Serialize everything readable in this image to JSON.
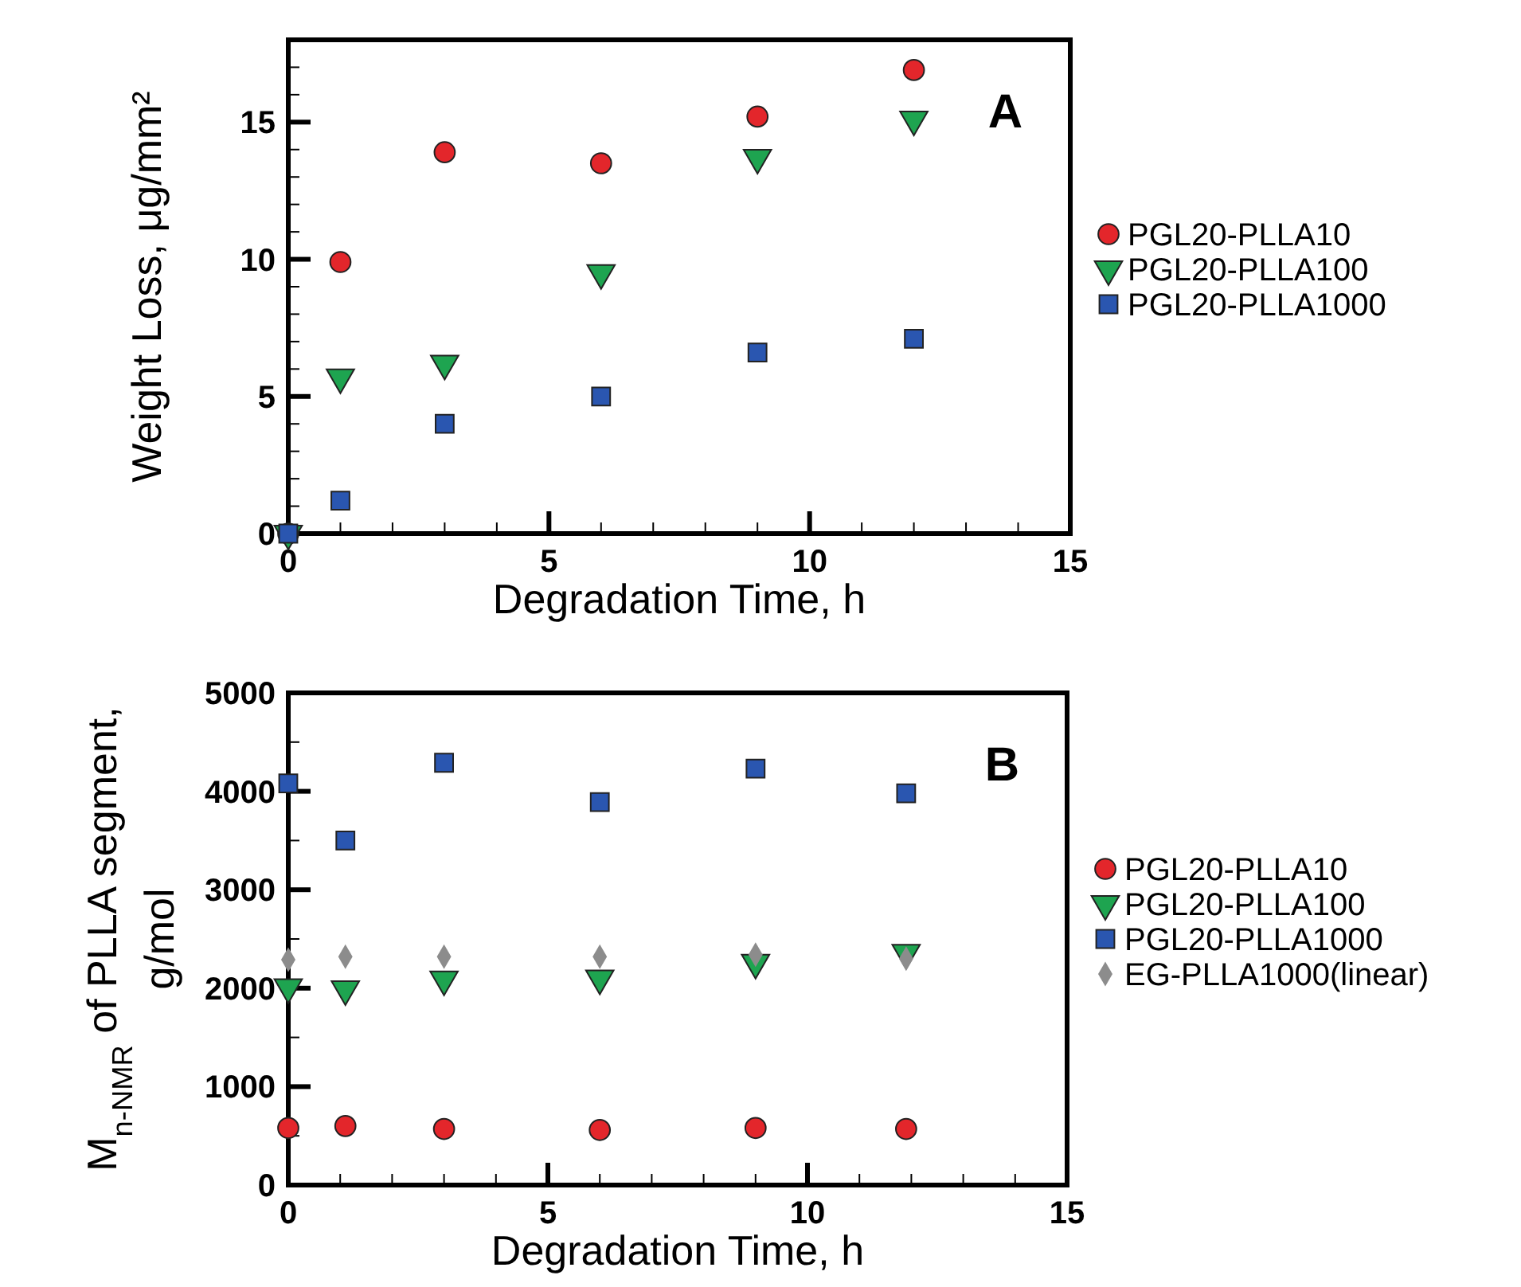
{
  "chart_data": [
    {
      "type": "scatter",
      "xlabel": "Degradation Time, h",
      "ylabel": "Weight Loss, μg/mm²",
      "annotations": [
        "A"
      ],
      "xlim": [
        0,
        15
      ],
      "ylim": [
        0,
        18
      ],
      "xticks": [
        0,
        {
          "value": 1,
          "label": null
        },
        {
          "value": 2,
          "label": null
        },
        {
          "value": 3,
          "label": null
        },
        {
          "value": 4,
          "label": null
        },
        5,
        {
          "value": 6,
          "label": null
        },
        {
          "value": 7,
          "label": null
        },
        {
          "value": 8,
          "label": null
        },
        {
          "value": 9,
          "label": null
        },
        10,
        {
          "value": 11,
          "label": null
        },
        {
          "value": 12,
          "label": null
        },
        {
          "value": 13,
          "label": null
        },
        {
          "value": 14,
          "label": null
        },
        15
      ],
      "yticks": [
        0,
        {
          "value": 1,
          "label": null
        },
        {
          "value": 2,
          "label": null
        },
        {
          "value": 3,
          "label": null
        },
        {
          "value": 4,
          "label": null
        },
        5,
        {
          "value": 6,
          "label": null
        },
        {
          "value": 7,
          "label": null
        },
        {
          "value": 8,
          "label": null
        },
        {
          "value": 9,
          "label": null
        },
        10,
        {
          "value": 11,
          "label": null
        },
        {
          "value": 12,
          "label": null
        },
        {
          "value": 13,
          "label": null
        },
        {
          "value": 14,
          "label": null
        },
        15,
        {
          "value": 16,
          "label": null
        },
        {
          "value": 17,
          "label": null
        },
        {
          "value": 18,
          "label": null
        }
      ],
      "legend": "right",
      "grid": false,
      "series": [
        {
          "name": "PGL20-PLLA10",
          "color": "#e3262b",
          "marker": "circle",
          "x": [
            0,
            1,
            3,
            6,
            9,
            12
          ],
          "values": [
            0,
            9.9,
            13.9,
            13.5,
            15.2,
            16.9
          ]
        },
        {
          "name": "PGL20-PLLA100",
          "color": "#1ea450",
          "marker": "triangle",
          "x": [
            0,
            1,
            3,
            6,
            9,
            12
          ],
          "values": [
            0,
            5.7,
            6.2,
            9.5,
            13.7,
            15.1
          ]
        },
        {
          "name": "PGL20-PLLA1000",
          "color": "#2a56b0",
          "marker": "square",
          "x": [
            0,
            1,
            3,
            6,
            9,
            12
          ],
          "values": [
            0,
            1.2,
            4.0,
            5.0,
            6.6,
            7.1
          ]
        }
      ]
    },
    {
      "type": "scatter",
      "xlabel": "Degradation Time, h",
      "ylabel": "M$_{n-NMR}$ of PLLA segment, g/mol",
      "annotations": [
        "B"
      ],
      "xlim": [
        0,
        15
      ],
      "ylim": [
        0,
        5000
      ],
      "xticks": [
        0,
        {
          "value": 1,
          "label": null
        },
        {
          "value": 2,
          "label": null
        },
        {
          "value": 3,
          "label": null
        },
        {
          "value": 4,
          "label": null
        },
        5,
        {
          "value": 6,
          "label": null
        },
        {
          "value": 7,
          "label": null
        },
        {
          "value": 8,
          "label": null
        },
        {
          "value": 9,
          "label": null
        },
        10,
        {
          "value": 11,
          "label": null
        },
        {
          "value": 12,
          "label": null
        },
        {
          "value": 13,
          "label": null
        },
        {
          "value": 14,
          "label": null
        },
        15
      ],
      "yticks": [
        0,
        {
          "value": 500,
          "label": null
        },
        1000,
        {
          "value": 1500,
          "label": null
        },
        2000,
        {
          "value": 2500,
          "label": null
        },
        3000,
        {
          "value": 3500,
          "label": null
        },
        4000,
        {
          "value": 4500,
          "label": null
        },
        5000
      ],
      "legend": "right",
      "grid": false,
      "series": [
        {
          "name": "PGL20-PLLA10",
          "color": "#e3262b",
          "marker": "circle",
          "x": [
            0,
            1.1,
            3,
            6,
            9,
            11.9
          ],
          "values": [
            580,
            600,
            570,
            560,
            580,
            570
          ]
        },
        {
          "name": "PGL20-PLLA100",
          "color": "#1ea450",
          "marker": "triangle",
          "x": [
            0,
            1.1,
            3,
            6,
            9,
            11.9
          ],
          "values": [
            2010,
            1990,
            2090,
            2100,
            2260,
            2360
          ]
        },
        {
          "name": "PGL20-PLLA1000",
          "color": "#2a56b0",
          "marker": "square",
          "x": [
            0,
            1.1,
            3,
            6,
            9,
            11.9
          ],
          "values": [
            4080,
            3500,
            4290,
            3890,
            4230,
            3980
          ]
        },
        {
          "name": "EG-PLLA1000(linear)",
          "color": "#8c8c8c",
          "marker": "diamond",
          "x": [
            0,
            1.1,
            3,
            6,
            9,
            11.9
          ],
          "values": [
            2290,
            2320,
            2320,
            2320,
            2340,
            2300
          ]
        }
      ]
    }
  ]
}
